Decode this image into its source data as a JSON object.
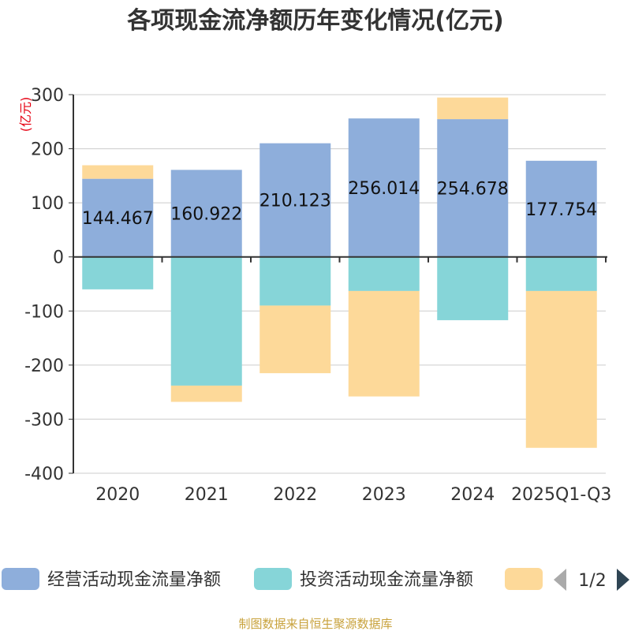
{
  "chart_data": {
    "type": "bar",
    "stacked": true,
    "title": "各项现金流净额历年变化情况(亿元)",
    "ylabel": "(亿元)",
    "xlabel": "",
    "ylim": [
      -400,
      300
    ],
    "yticks": [
      300,
      200,
      100,
      0,
      -100,
      -200,
      -300,
      -400
    ],
    "categories": [
      "2020",
      "2021",
      "2022",
      "2023",
      "2024",
      "2025Q1-Q3"
    ],
    "series": [
      {
        "name": "经营活动现金流量净额",
        "color": "#8eaedb",
        "values": [
          144.467,
          160.922,
          210.123,
          256.014,
          254.678,
          177.754
        ],
        "labels": [
          "144.467",
          "160.922",
          "210.123",
          "256.014",
          "254.678",
          "177.754"
        ]
      },
      {
        "name": "投资活动现金流量净额",
        "color": "#86d5d8",
        "values": [
          -60,
          -238,
          -90,
          -63,
          -117,
          -63
        ]
      },
      {
        "name": "",
        "color": "#fdd999",
        "values": [
          25,
          -30,
          -125,
          -195,
          40,
          -290
        ]
      }
    ],
    "legend_position": "bottom",
    "grid": true
  },
  "legend": {
    "page": "1/2"
  },
  "source": "制图数据来自恒生聚源数据库"
}
